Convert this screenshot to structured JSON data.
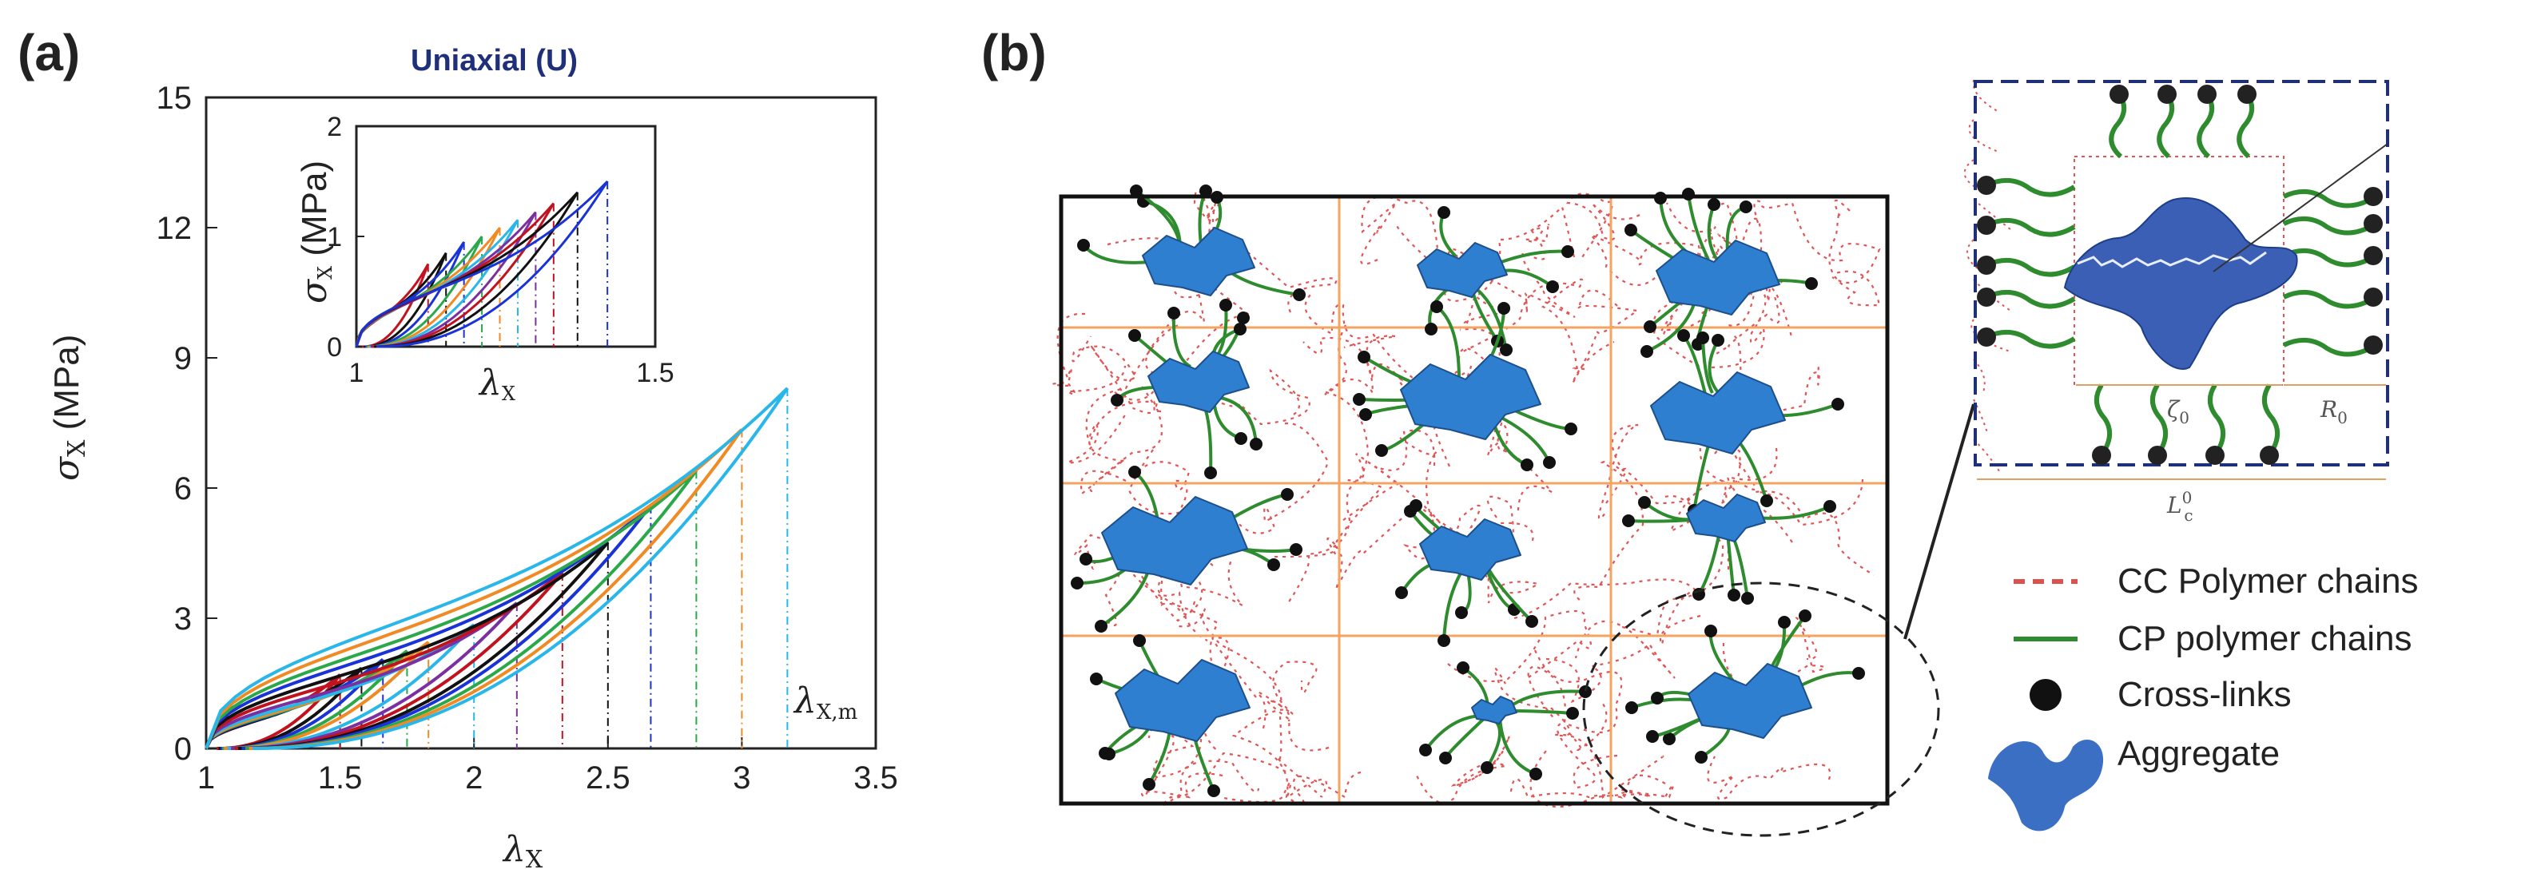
{
  "panel_a": {
    "label": "(a)",
    "title": "Uniaxial (U)",
    "ylabel_symbol": "σ",
    "ylabel_sub": "X",
    "ylabel_unit": " (MPa)",
    "xlabel_symbol": "λ",
    "xlabel_sub": "X",
    "annotation_symbol": "λ",
    "annotation_sub": "X,m"
  },
  "panel_b": {
    "label": "(b)",
    "legend": [
      {
        "label": "CC Polymer chains",
        "style": "dashed",
        "color": "#d9534f"
      },
      {
        "label": "CP polymer chains",
        "style": "solid",
        "color": "#2e8b2e"
      },
      {
        "label": "Cross-links",
        "style": "dot",
        "color": "#111111"
      },
      {
        "label": "Aggregate",
        "style": "blob",
        "color": "#3b6fc4"
      }
    ],
    "cell_labels": {
      "zeta": "ζ",
      "zeta_sub": "0",
      "r": "R",
      "r_sub": "0",
      "l": "L",
      "l_sub": "c",
      "l_sup": "0"
    },
    "colors": {
      "grid": "#f4a460",
      "aggregate": "#2f7fd0",
      "cp_chain": "#2e8b2e",
      "cc_chain": "#e05555",
      "cell_frame": "#1f2f7a"
    }
  },
  "chart_data": [
    {
      "type": "line",
      "title": "Uniaxial (U)",
      "xlabel": "λX",
      "ylabel": "σX (MPa)",
      "xlim": [
        1,
        3.5
      ],
      "ylim": [
        0,
        15
      ],
      "xticks": [
        "1",
        "1.5",
        "2",
        "2.5",
        "3",
        "3.5"
      ],
      "yticks": [
        "0",
        "3",
        "6",
        "9",
        "12",
        "15"
      ],
      "series": [
        {
          "color": "#c1121f",
          "max_stretch": 1.5,
          "peak": 1.7
        },
        {
          "color": "#111111",
          "max_stretch": 1.58,
          "peak": 1.85
        },
        {
          "color": "#1a33d6",
          "max_stretch": 1.66,
          "peak": 2.05
        },
        {
          "color": "#2aa84a",
          "max_stretch": 1.75,
          "peak": 2.25
        },
        {
          "color": "#f08a24",
          "max_stretch": 1.83,
          "peak": 2.45
        },
        {
          "color": "#29b6e8",
          "max_stretch": 2.0,
          "peak": 2.85
        },
        {
          "color": "#7b2fa0",
          "max_stretch": 2.16,
          "peak": 3.35
        },
        {
          "color": "#c1121f",
          "max_stretch": 2.33,
          "peak": 4.05
        },
        {
          "color": "#111111",
          "max_stretch": 2.5,
          "peak": 4.75
        },
        {
          "color": "#1a33d6",
          "max_stretch": 2.66,
          "peak": 5.6
        },
        {
          "color": "#2aa84a",
          "max_stretch": 2.83,
          "peak": 6.4
        },
        {
          "color": "#f08a24",
          "max_stretch": 3.0,
          "peak": 7.35
        },
        {
          "color": "#29b6e8",
          "max_stretch": 3.17,
          "peak": 8.3
        }
      ],
      "annotation": "λX,m"
    },
    {
      "type": "line",
      "title": "",
      "xlabel": "λX",
      "ylabel": "σX (MPa)",
      "xlim": [
        1,
        1.5
      ],
      "ylim": [
        0,
        2
      ],
      "xticks": [
        "1",
        "1.5"
      ],
      "yticks": [
        "0",
        "1",
        "2"
      ],
      "series": [
        {
          "color": "#c1121f",
          "max_stretch": 1.12,
          "peak": 0.75
        },
        {
          "color": "#111111",
          "max_stretch": 1.15,
          "peak": 0.85
        },
        {
          "color": "#1a33d6",
          "max_stretch": 1.18,
          "peak": 0.95
        },
        {
          "color": "#2aa84a",
          "max_stretch": 1.21,
          "peak": 1.0
        },
        {
          "color": "#f08a24",
          "max_stretch": 1.24,
          "peak": 1.08
        },
        {
          "color": "#29b6e8",
          "max_stretch": 1.27,
          "peak": 1.15
        },
        {
          "color": "#7b2fa0",
          "max_stretch": 1.3,
          "peak": 1.22
        },
        {
          "color": "#c1121f",
          "max_stretch": 1.33,
          "peak": 1.3
        },
        {
          "color": "#111111",
          "max_stretch": 1.37,
          "peak": 1.4
        },
        {
          "color": "#1a33d6",
          "max_stretch": 1.42,
          "peak": 1.5
        }
      ]
    }
  ]
}
